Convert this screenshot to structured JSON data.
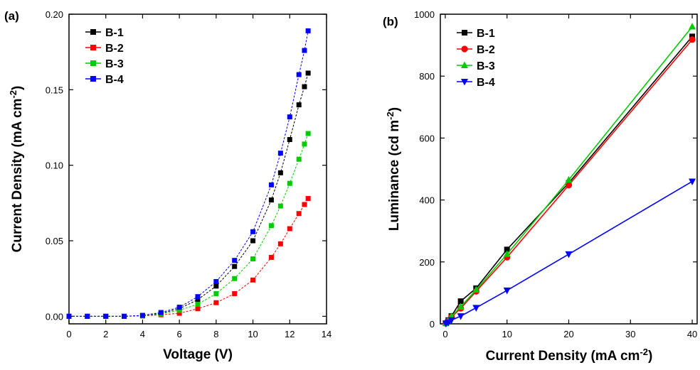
{
  "chart_data": [
    {
      "type": "scatter",
      "panel_label": "(a)",
      "xlabel": "Voltage (V)",
      "ylabel_main": "Current Density (mA cm",
      "ylabel_sup": "-2",
      "ylabel_end": ")",
      "xlim": [
        0,
        14
      ],
      "ylim": [
        -0.005,
        0.2
      ],
      "xticks": [
        "0",
        "2",
        "4",
        "6",
        "8",
        "10",
        "12",
        "14"
      ],
      "xtick_values": [
        0,
        2,
        4,
        6,
        8,
        10,
        12,
        14
      ],
      "yticks": [
        "0.00",
        "0.05",
        "0.10",
        "0.15",
        "0.20"
      ],
      "ytick_values": [
        0,
        0.05,
        0.1,
        0.15,
        0.2
      ],
      "legend_position": "top-left",
      "series": [
        {
          "name": "B-1",
          "color": "#000000",
          "marker": "square",
          "x": [
            0,
            1,
            2,
            3,
            4,
            5,
            6,
            7,
            8,
            9,
            10,
            11,
            11.5,
            12,
            12.5,
            12.8,
            13.0
          ],
          "y": [
            0,
            0,
            0,
            0,
            0.0005,
            0.002,
            0.005,
            0.011,
            0.02,
            0.033,
            0.05,
            0.077,
            0.095,
            0.117,
            0.14,
            0.152,
            0.161
          ]
        },
        {
          "name": "B-2",
          "color": "#ff0000",
          "marker": "square",
          "x": [
            0,
            1,
            2,
            3,
            4,
            5,
            6,
            7,
            8,
            9,
            10,
            11,
            11.5,
            12,
            12.5,
            12.8,
            13.0
          ],
          "y": [
            0,
            0,
            0,
            0,
            0.0002,
            0.001,
            0.002,
            0.005,
            0.009,
            0.015,
            0.024,
            0.039,
            0.048,
            0.058,
            0.068,
            0.074,
            0.078
          ]
        },
        {
          "name": "B-3",
          "color": "#00cc00",
          "marker": "square",
          "x": [
            0,
            1,
            2,
            3,
            4,
            5,
            6,
            7,
            8,
            9,
            10,
            11,
            11.5,
            12,
            12.5,
            12.8,
            13.0
          ],
          "y": [
            0,
            0,
            0,
            0,
            0.0003,
            0.0015,
            0.004,
            0.008,
            0.015,
            0.025,
            0.038,
            0.06,
            0.073,
            0.088,
            0.104,
            0.114,
            0.121
          ]
        },
        {
          "name": "B-4",
          "color": "#0000ff",
          "marker": "square",
          "x": [
            0,
            1,
            2,
            3,
            4,
            5,
            6,
            7,
            8,
            9,
            10,
            11,
            11.5,
            12,
            12.5,
            12.8,
            13.0
          ],
          "y": [
            0,
            0,
            0,
            0,
            0.0006,
            0.0025,
            0.006,
            0.013,
            0.023,
            0.037,
            0.056,
            0.087,
            0.108,
            0.132,
            0.16,
            0.176,
            0.189
          ]
        }
      ]
    },
    {
      "type": "line",
      "panel_label": "(b)",
      "xlabel_main": "Current Density (mA cm",
      "xlabel_sup": "-2",
      "xlabel_end": ")",
      "ylabel_main": "Luminance (cd m",
      "ylabel_sup": "-2",
      "ylabel_end": ")",
      "xlim": [
        -0.8,
        40.8
      ],
      "ylim": [
        0,
        1000
      ],
      "xticks": [
        "0",
        "10",
        "20",
        "30",
        "40"
      ],
      "xtick_values": [
        0,
        10,
        20,
        30,
        40
      ],
      "yticks": [
        "0",
        "200",
        "400",
        "600",
        "800",
        "1000"
      ],
      "ytick_values": [
        0,
        200,
        400,
        600,
        800,
        1000
      ],
      "legend_position": "top-left",
      "series": [
        {
          "name": "B-1",
          "color": "#000000",
          "marker": "square",
          "x": [
            0.1,
            0.5,
            1,
            2.5,
            5,
            10,
            20,
            40
          ],
          "y": [
            2,
            12,
            25,
            73,
            115,
            240,
            455,
            928
          ]
        },
        {
          "name": "B-2",
          "color": "#ff0000",
          "marker": "circle",
          "x": [
            0.1,
            0.5,
            1,
            2.5,
            5,
            10,
            20,
            40
          ],
          "y": [
            2,
            10,
            22,
            50,
            105,
            215,
            448,
            918
          ]
        },
        {
          "name": "B-3",
          "color": "#00cc00",
          "marker": "triangle-up",
          "x": [
            0.1,
            0.5,
            1,
            2.5,
            5,
            10,
            20,
            40
          ],
          "y": [
            2,
            11,
            24,
            55,
            110,
            225,
            465,
            960
          ]
        },
        {
          "name": "B-4",
          "color": "#0000ff",
          "marker": "triangle-down",
          "x": [
            0.1,
            0.5,
            1,
            2.5,
            5,
            10,
            20,
            40
          ],
          "y": [
            1,
            5,
            12,
            25,
            52,
            108,
            225,
            460
          ]
        }
      ]
    }
  ]
}
